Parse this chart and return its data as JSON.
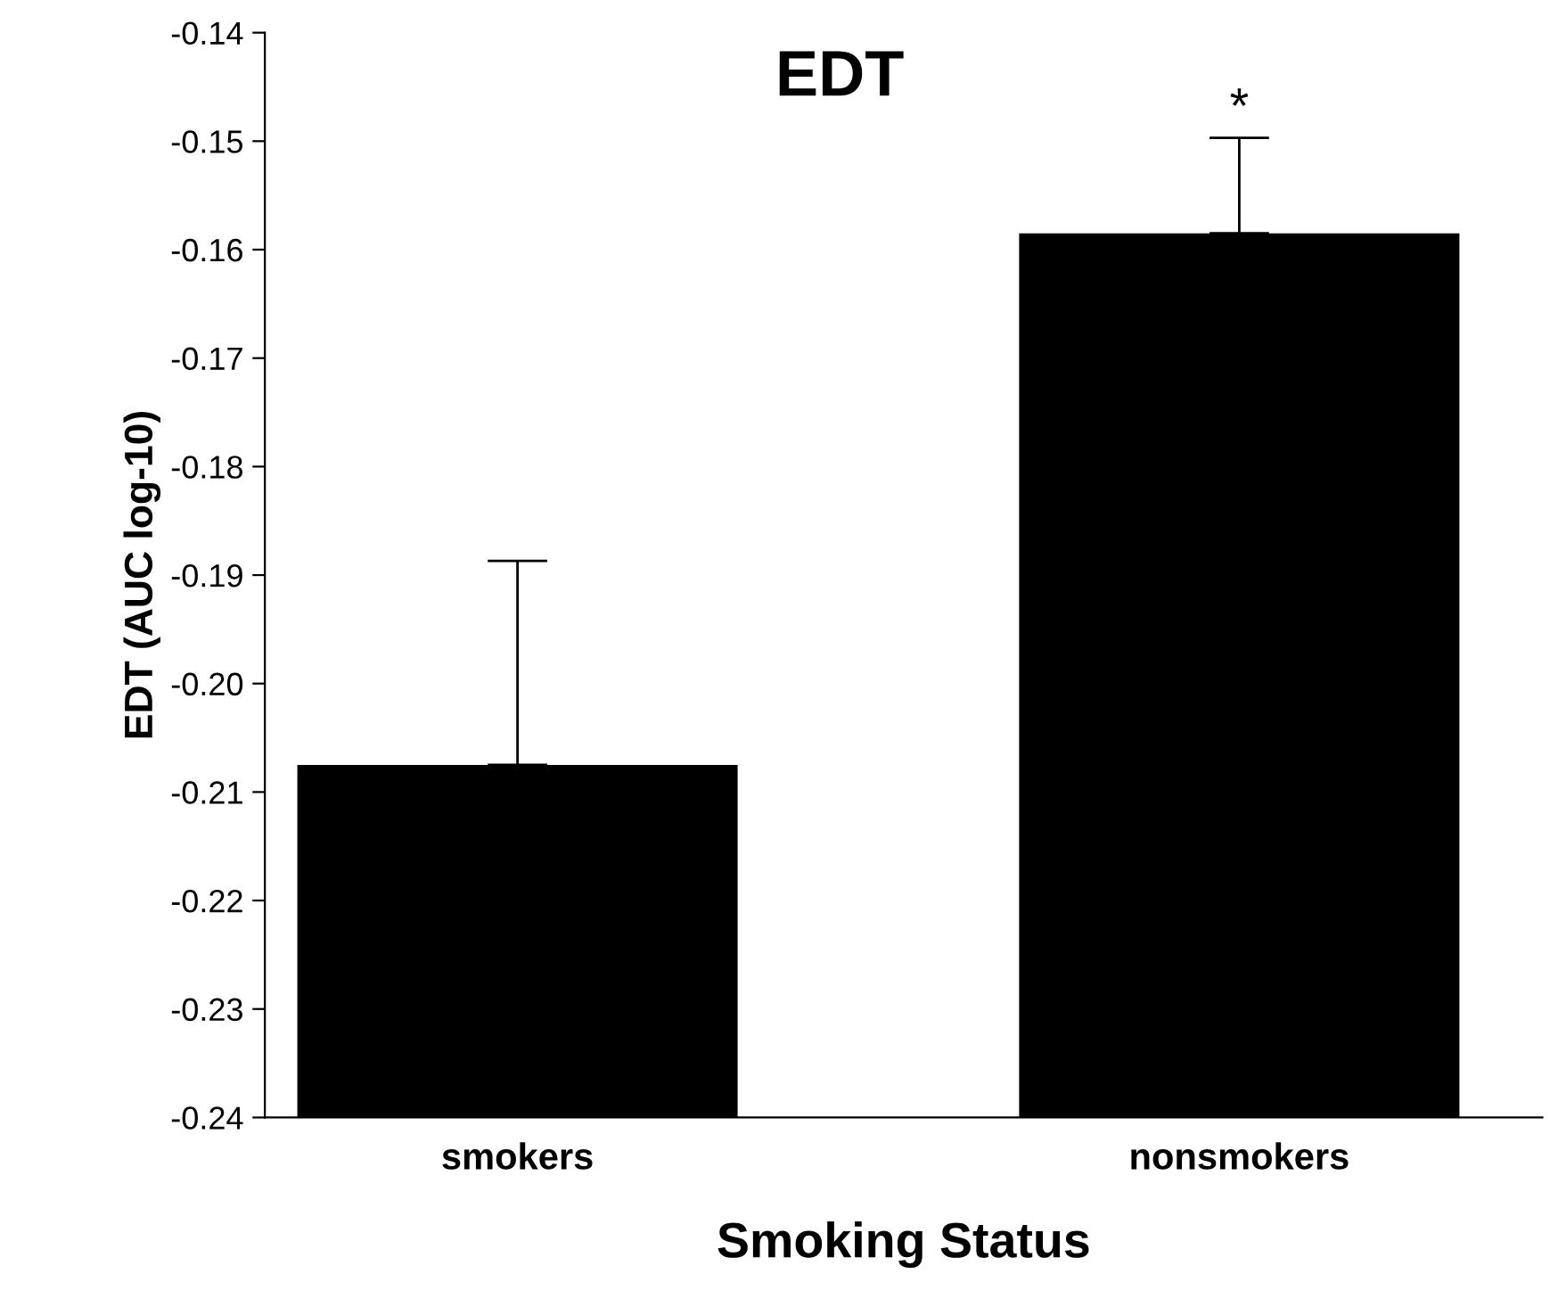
{
  "chart_data": {
    "type": "bar",
    "title": "EDT",
    "xlabel": "Smoking Status",
    "ylabel": "EDT (AUC log-10)",
    "categories": [
      "smokers",
      "nonsmokers"
    ],
    "values": [
      0.0325,
      0.0815
    ],
    "base": [
      -0.24,
      -0.24
    ],
    "colors": [
      "#000000",
      "#000000"
    ],
    "errors": [
      [
        -0.2075,
        -0.1887
      ],
      [
        -0.1585,
        -0.1497
      ]
    ],
    "ylim": [
      -0.24,
      -0.14
    ],
    "yticks": [
      -0.24,
      -0.23,
      -0.22,
      -0.21,
      {
        "value": -0.2,
        "label": "-0.20"
      },
      -0.19,
      -0.18,
      -0.17,
      -0.16,
      -0.15,
      -0.14
    ],
    "annotations": [
      {
        "text": "*",
        "x": "nonsmokers",
        "y": -0.1497
      }
    ],
    "grid": false,
    "legend": false
  }
}
